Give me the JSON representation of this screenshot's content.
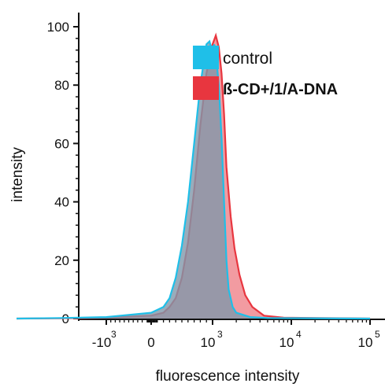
{
  "chart_data": {
    "type": "area",
    "xlabel": "fluorescence intensity",
    "ylabel": "intensity",
    "x_scale": "logicle",
    "ylim": [
      0,
      100
    ],
    "y_ticks": [
      "0",
      "20",
      "40",
      "60",
      "80",
      "100"
    ],
    "x_ticks": [
      {
        "label": "-10",
        "sup": "3"
      },
      {
        "label": "0",
        "sup": ""
      },
      {
        "label": "10",
        "sup": "3"
      },
      {
        "label": "10",
        "sup": "4"
      },
      {
        "label": "10",
        "sup": "5"
      }
    ],
    "legend": {
      "position": "top-right"
    },
    "series": [
      {
        "name": "control",
        "color": "#1fbfe8",
        "fill": "#7f97aa",
        "points": [
          [
            -3000,
            0
          ],
          [
            -2000,
            0.2
          ],
          [
            -1000,
            0.5
          ],
          [
            0,
            2
          ],
          [
            200,
            4
          ],
          [
            300,
            7
          ],
          [
            400,
            14
          ],
          [
            500,
            25
          ],
          [
            600,
            40
          ],
          [
            700,
            60
          ],
          [
            800,
            80
          ],
          [
            900,
            94
          ],
          [
            950,
            95
          ],
          [
            1000,
            91
          ],
          [
            1050,
            94
          ],
          [
            1100,
            91
          ],
          [
            1200,
            80
          ],
          [
            1300,
            62
          ],
          [
            1400,
            40
          ],
          [
            1500,
            20
          ],
          [
            1600,
            10
          ],
          [
            1800,
            4
          ],
          [
            2000,
            2
          ],
          [
            3000,
            0.5
          ],
          [
            5000,
            0.2
          ],
          [
            100000,
            0
          ]
        ]
      },
      {
        "name": "ß-CD+/1/A-DNA",
        "color": "#e8363f",
        "fill": "#f08a90",
        "points": [
          [
            -3000,
            0
          ],
          [
            -2000,
            0.1
          ],
          [
            -1000,
            0.3
          ],
          [
            0,
            1
          ],
          [
            200,
            2
          ],
          [
            300,
            4
          ],
          [
            400,
            7
          ],
          [
            500,
            14
          ],
          [
            600,
            26
          ],
          [
            700,
            44
          ],
          [
            800,
            66
          ],
          [
            900,
            84
          ],
          [
            1000,
            94
          ],
          [
            1100,
            97
          ],
          [
            1200,
            93
          ],
          [
            1300,
            84
          ],
          [
            1400,
            70
          ],
          [
            1500,
            52
          ],
          [
            1700,
            35
          ],
          [
            1900,
            24
          ],
          [
            2200,
            15
          ],
          [
            2600,
            8
          ],
          [
            3200,
            4
          ],
          [
            4500,
            1
          ],
          [
            8000,
            0.3
          ],
          [
            100000,
            0
          ]
        ]
      }
    ]
  }
}
